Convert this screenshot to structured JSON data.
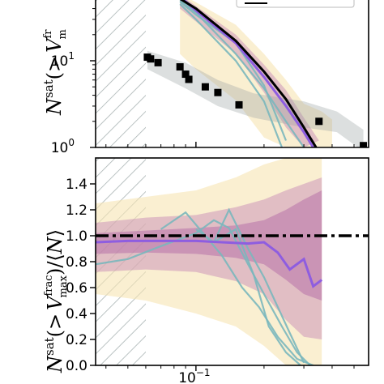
{
  "chart_data": [
    {
      "type": "line",
      "panel": "top",
      "yscale": "log",
      "xscale": "log",
      "ylabel": "N^sat(>V^frac_max)",
      "xlim": [
        0.036,
        0.58
      ],
      "ylim": [
        1,
        50
      ],
      "xtick_labels": [],
      "ytick_labels": [
        {
          "value": 10,
          "base": "10",
          "exp": "1"
        },
        {
          "value": 1,
          "base": "10",
          "exp": "0"
        }
      ],
      "excluded_region": {
        "from": 0.036,
        "to": 0.058
      },
      "series": [
        {
          "role": "mean",
          "color": "#000000",
          "x": [
            0.085,
            0.1,
            0.15,
            0.2,
            0.25,
            0.3,
            0.34
          ],
          "y": [
            52,
            40,
            17,
            7.5,
            3.6,
            1.7,
            1.0
          ]
        },
        {
          "role": "median",
          "color": "#8e5de0",
          "x": [
            0.085,
            0.1,
            0.15,
            0.2,
            0.25,
            0.3,
            0.33
          ],
          "y": [
            55,
            38,
            16,
            6.5,
            3.0,
            1.5,
            1.0
          ]
        },
        {
          "role": "realisation",
          "color": "#7ab7bd",
          "x": [
            0.085,
            0.1,
            0.15,
            0.2,
            0.25,
            0.3
          ],
          "y": [
            50,
            36,
            12,
            4.8,
            2.0,
            1.0
          ]
        },
        {
          "role": "realisation",
          "color": "#7ab7bd",
          "x": [
            0.085,
            0.1,
            0.15,
            0.2,
            0.25
          ],
          "y": [
            48,
            34,
            16,
            5.2,
            1.2
          ]
        },
        {
          "role": "realisation",
          "color": "#7ab7bd",
          "x": [
            0.085,
            0.1,
            0.15,
            0.2,
            0.24
          ],
          "y": [
            45,
            30,
            10,
            3.4,
            1.0
          ]
        }
      ],
      "observed_points": {
        "marker": "square",
        "color": "#000000",
        "x": [
          0.061,
          0.063,
          0.068,
          0.085,
          0.09,
          0.093,
          0.11,
          0.125,
          0.155,
          0.35,
          0.55
        ],
        "y": [
          11,
          10.5,
          9.5,
          8.5,
          7.0,
          6.1,
          5.0,
          4.3,
          3.1,
          2.0,
          1.05
        ]
      }
    },
    {
      "type": "line",
      "panel": "bottom",
      "xscale": "log",
      "ylabel": "N^sat(>V^frac_max)/⟨N⟩",
      "xlim": [
        0.036,
        0.58
      ],
      "ylim": [
        0.0,
        1.6
      ],
      "xtick_labels": [
        {
          "value": 0.1,
          "base": "10",
          "exp": "−1"
        }
      ],
      "ytick_labels": [
        "0.0",
        "0.2",
        "0.4",
        "0.6",
        "0.8",
        "1.0",
        "1.2",
        "1.4"
      ],
      "reference_line": {
        "y": 1.0,
        "style": "dash-dot",
        "color": "#000000"
      },
      "excluded_region": {
        "from": 0.036,
        "to": 0.058
      },
      "median": {
        "color": "#8e5de0",
        "x": [
          0.036,
          0.05,
          0.07,
          0.1,
          0.13,
          0.17,
          0.2,
          0.23,
          0.26,
          0.3,
          0.33,
          0.36
        ],
        "y": [
          0.95,
          0.96,
          0.96,
          0.96,
          0.95,
          0.94,
          0.95,
          0.87,
          0.74,
          0.82,
          0.61,
          0.66
        ]
      },
      "realisations": [
        {
          "color": "#7ab7bd",
          "x": [
            0.036,
            0.05,
            0.07,
            0.1,
            0.12,
            0.14,
            0.17,
            0.2,
            0.24,
            0.28,
            0.32
          ],
          "y": [
            0.78,
            0.82,
            0.92,
            1.02,
            1.12,
            1.06,
            0.78,
            0.55,
            0.3,
            0.1,
            0.0
          ]
        },
        {
          "color": "#7ab7bd",
          "x": [
            0.07,
            0.09,
            0.11,
            0.13,
            0.16,
            0.19,
            0.23,
            0.28,
            0.33
          ],
          "y": [
            1.05,
            1.18,
            1.0,
            0.85,
            0.6,
            0.45,
            0.22,
            0.05,
            0.0
          ]
        },
        {
          "color": "#7ab7bd",
          "x": [
            0.1,
            0.12,
            0.14,
            0.17,
            0.2,
            0.23,
            0.26,
            0.3
          ],
          "y": [
            1.05,
            0.95,
            1.2,
            0.9,
            0.68,
            0.45,
            0.25,
            0.02
          ]
        },
        {
          "color": "#7ab7bd",
          "x": [
            0.12,
            0.15,
            0.18,
            0.21,
            0.25,
            0.29
          ],
          "y": [
            0.95,
            1.05,
            0.7,
            0.3,
            0.1,
            0.0
          ]
        }
      ],
      "bands": [
        {
          "color": "#f7e4b3",
          "opacity": 0.6,
          "x": [
            0.036,
            0.06,
            0.1,
            0.15,
            0.2,
            0.25,
            0.3,
            0.36
          ],
          "lo": [
            0.55,
            0.5,
            0.4,
            0.3,
            0.15,
            0.0,
            0.0,
            0.0
          ],
          "hi": [
            1.25,
            1.3,
            1.35,
            1.45,
            1.55,
            1.6,
            1.6,
            1.6
          ]
        },
        {
          "color": "#c483b4",
          "opacity": 0.45,
          "x": [
            0.036,
            0.06,
            0.1,
            0.15,
            0.2,
            0.25,
            0.3,
            0.36
          ],
          "lo": [
            0.72,
            0.74,
            0.72,
            0.65,
            0.55,
            0.35,
            0.22,
            0.2
          ],
          "hi": [
            1.1,
            1.14,
            1.16,
            1.22,
            1.28,
            1.35,
            1.4,
            1.45
          ]
        },
        {
          "color": "#b36aa6",
          "opacity": 0.5,
          "x": [
            0.036,
            0.06,
            0.1,
            0.15,
            0.2,
            0.25,
            0.3,
            0.36
          ],
          "lo": [
            0.86,
            0.87,
            0.86,
            0.83,
            0.78,
            0.66,
            0.55,
            0.5
          ],
          "hi": [
            1.02,
            1.04,
            1.06,
            1.08,
            1.12,
            1.2,
            1.28,
            1.35
          ]
        }
      ]
    }
  ]
}
